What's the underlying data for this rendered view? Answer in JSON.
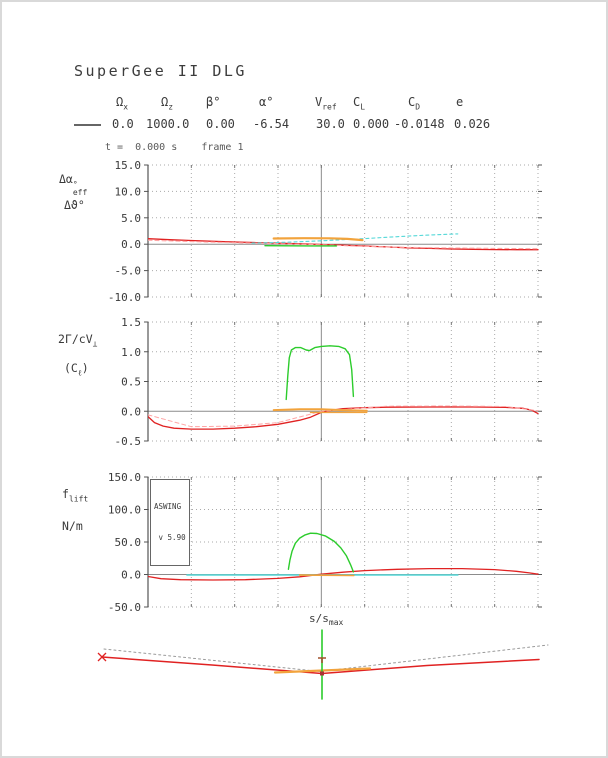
{
  "title": "SuperGee II DLG",
  "time_label": "t =  0.000 s    frame 1",
  "header": {
    "legend_swatch_color": "#666666",
    "columns": [
      {
        "symbol": "Ω",
        "sub": "x",
        "value": "0.0"
      },
      {
        "symbol": "Ω",
        "sub": "z",
        "value": "1000.0"
      },
      {
        "symbol": "β°",
        "sub": "",
        "value": "0.00"
      },
      {
        "symbol": "α°",
        "sub": "",
        "value": "-6.54"
      },
      {
        "symbol": "V",
        "sub": "ref",
        "value": "30.0"
      },
      {
        "symbol": "C",
        "sub": "L",
        "value": "0.000"
      },
      {
        "symbol": "C",
        "sub": "D",
        "value": "-0.0148"
      },
      {
        "symbol": "e",
        "sub": "",
        "value": "0.026"
      }
    ]
  },
  "version_box": {
    "line1": "ASWING",
    "line2": " v 5.90"
  },
  "xaxis_label": {
    "base": "s/s",
    "sub": "max"
  },
  "ylabels": {
    "plot1": {
      "l1base": "Δα",
      "l1sup": "°",
      "l1sub": "eff",
      "l2": "Δϑ°"
    },
    "plot2": {
      "l1base": "2Γ/cV",
      "l1sub": "⊥",
      "l2base": "(C",
      "l2sub": "ℓ",
      "l2end": ")"
    },
    "plot3": {
      "l1base": "f",
      "l1sub": "lift",
      "l2": "N/m"
    }
  },
  "colors": {
    "red": "#e02222",
    "pink": "#ffa6a6",
    "green": "#2ccc2c",
    "orange": "#f2a33c",
    "cyan": "#55d8d8",
    "grid": "#aaaaaa",
    "zero": "#8c8c8c",
    "axis": "#555555",
    "text": "#3a3a3a",
    "dotted_ref": "#9a9a9a",
    "marker_brown": "#a0522d"
  },
  "chart_data": [
    {
      "id": "plot1",
      "type": "line",
      "ylabel": "Δα°eff , Δϑ° (deg)",
      "xlabel": "s/s_max",
      "xlim": [
        -0.8,
        1.0
      ],
      "xtick_step": 0.2,
      "ylim": [
        -10,
        15
      ],
      "yticks": [
        [
          15,
          "15.0"
        ],
        [
          10,
          "10.0"
        ],
        [
          5,
          "5.0"
        ],
        [
          0,
          "0.0"
        ],
        [
          -5,
          "-5.0"
        ],
        [
          -10,
          "-10.0"
        ]
      ],
      "series": [
        {
          "name": "wing-delta-alpha",
          "color": "#e02222",
          "width": 1.3,
          "dash": null,
          "points": [
            [
              -0.8,
              1.05
            ],
            [
              -0.7,
              0.85
            ],
            [
              -0.6,
              0.7
            ],
            [
              -0.5,
              0.55
            ],
            [
              -0.4,
              0.42
            ],
            [
              -0.3,
              0.3
            ],
            [
              -0.2,
              0.18
            ],
            [
              -0.1,
              0.08
            ],
            [
              0,
              -0.05
            ],
            [
              0.1,
              -0.18
            ],
            [
              0.2,
              -0.35
            ],
            [
              0.3,
              -0.52
            ],
            [
              0.4,
              -0.68
            ],
            [
              0.5,
              -0.8
            ],
            [
              0.6,
              -0.9
            ],
            [
              0.7,
              -0.97
            ],
            [
              0.8,
              -1.02
            ],
            [
              0.9,
              -1.05
            ],
            [
              1.0,
              -1.05
            ]
          ]
        },
        {
          "name": "wing-delta-theta",
          "color": "#ffa6a6",
          "width": 1.1,
          "dash": "4 3",
          "points": [
            [
              -0.8,
              0.75
            ],
            [
              -0.6,
              0.5
            ],
            [
              -0.4,
              0.28
            ],
            [
              -0.2,
              0.1
            ],
            [
              0,
              -0.12
            ],
            [
              0.2,
              -0.42
            ],
            [
              0.4,
              -0.6
            ],
            [
              0.6,
              -0.72
            ],
            [
              0.8,
              -0.8
            ],
            [
              1.0,
              -0.85
            ]
          ]
        },
        {
          "name": "boom-cyan",
          "color": "#55d8d8",
          "width": 1.1,
          "dash": "3 3",
          "points": [
            [
              -0.32,
              0.2
            ],
            [
              -0.2,
              0.33
            ],
            [
              -0.1,
              0.47
            ],
            [
              0,
              0.65
            ],
            [
              0.1,
              0.85
            ],
            [
              0.2,
              1.07
            ],
            [
              0.3,
              1.3
            ],
            [
              0.4,
              1.53
            ],
            [
              0.5,
              1.74
            ],
            [
              0.58,
              1.88
            ],
            [
              0.63,
              1.95
            ]
          ]
        },
        {
          "name": "hstab-orange",
          "color": "#f2a33c",
          "width": 2.2,
          "dash": null,
          "points": [
            [
              -0.22,
              1.08
            ],
            [
              -0.08,
              1.14
            ],
            [
              0.04,
              1.12
            ],
            [
              0.12,
              1.0
            ],
            [
              0.19,
              0.78
            ]
          ]
        },
        {
          "name": "fin-green",
          "color": "#2ccc2c",
          "width": 1.4,
          "dash": null,
          "points": [
            [
              -0.26,
              -0.28
            ],
            [
              -0.05,
              -0.33
            ],
            [
              0.07,
              -0.33
            ]
          ]
        }
      ]
    },
    {
      "id": "plot2",
      "type": "line",
      "ylabel": "2Γ/cV⊥ (Cl)",
      "xlabel": "s/s_max",
      "xlim": [
        -0.8,
        1.0
      ],
      "xtick_step": 0.2,
      "ylim": [
        -0.5,
        1.5
      ],
      "yticks": [
        [
          1.5,
          "1.5"
        ],
        [
          1.0,
          "1.0"
        ],
        [
          0.5,
          "0.5"
        ],
        [
          0.0,
          "0.0"
        ],
        [
          -0.5,
          "-0.5"
        ]
      ],
      "series": [
        {
          "name": "wing-cl",
          "color": "#e02222",
          "width": 1.3,
          "dash": null,
          "points": [
            [
              -0.8,
              -0.09
            ],
            [
              -0.77,
              -0.19
            ],
            [
              -0.73,
              -0.25
            ],
            [
              -0.68,
              -0.285
            ],
            [
              -0.6,
              -0.3
            ],
            [
              -0.5,
              -0.3
            ],
            [
              -0.4,
              -0.285
            ],
            [
              -0.3,
              -0.26
            ],
            [
              -0.2,
              -0.22
            ],
            [
              -0.1,
              -0.15
            ],
            [
              -0.05,
              -0.1
            ],
            [
              0,
              -0.02
            ],
            [
              0.05,
              0.02
            ],
            [
              0.1,
              0.045
            ],
            [
              0.2,
              0.06
            ],
            [
              0.3,
              0.068
            ],
            [
              0.5,
              0.072
            ],
            [
              0.7,
              0.072
            ],
            [
              0.85,
              0.065
            ],
            [
              0.93,
              0.05
            ],
            [
              0.97,
              0.02
            ],
            [
              1.0,
              -0.04
            ]
          ]
        },
        {
          "name": "wing-cl-dashed",
          "color": "#ffa6a6",
          "width": 1.0,
          "dash": "4 3",
          "points": [
            [
              -0.8,
              -0.06
            ],
            [
              -0.6,
              -0.26
            ],
            [
              -0.4,
              -0.25
            ],
            [
              -0.2,
              -0.19
            ],
            [
              0,
              0.0
            ],
            [
              0.3,
              0.085
            ],
            [
              0.6,
              0.088
            ],
            [
              0.85,
              0.08
            ],
            [
              1.0,
              0.01
            ]
          ]
        },
        {
          "name": "fin-cl",
          "color": "#2ccc2c",
          "width": 1.4,
          "dash": null,
          "points": [
            [
              -0.162,
              0.2
            ],
            [
              -0.155,
              0.6
            ],
            [
              -0.148,
              0.9
            ],
            [
              -0.138,
              1.03
            ],
            [
              -0.12,
              1.07
            ],
            [
              -0.095,
              1.07
            ],
            [
              -0.07,
              1.03
            ],
            [
              -0.055,
              1.02
            ],
            [
              -0.03,
              1.07
            ],
            [
              0,
              1.09
            ],
            [
              0.04,
              1.1
            ],
            [
              0.08,
              1.09
            ],
            [
              0.11,
              1.05
            ],
            [
              0.13,
              0.95
            ],
            [
              0.14,
              0.7
            ],
            [
              0.148,
              0.25
            ]
          ]
        },
        {
          "name": "hstab-cl-upper",
          "color": "#f2a33c",
          "width": 2.0,
          "dash": null,
          "points": [
            [
              -0.22,
              0.02
            ],
            [
              -0.1,
              0.035
            ],
            [
              0,
              0.035
            ],
            [
              0.1,
              0.02
            ],
            [
              0.21,
              0.01
            ]
          ]
        },
        {
          "name": "hstab-cl-lower",
          "color": "#f2a33c",
          "width": 1.4,
          "dash": null,
          "points": [
            [
              -0.05,
              -0.02
            ],
            [
              0.21,
              -0.02
            ]
          ]
        }
      ]
    },
    {
      "id": "plot3",
      "type": "line",
      "ylabel": "f_lift (N/m)",
      "xlabel": "s/s_max",
      "xlim": [
        -0.8,
        1.0
      ],
      "xtick_step": 0.2,
      "ylim": [
        -50,
        150
      ],
      "yticks": [
        [
          150,
          "150.0"
        ],
        [
          100,
          "100.0"
        ],
        [
          50,
          "50.0"
        ],
        [
          0,
          "0.0"
        ],
        [
          -50,
          "-50.0"
        ]
      ],
      "series": [
        {
          "name": "wing-lift",
          "color": "#e02222",
          "width": 1.3,
          "dash": null,
          "points": [
            [
              -0.8,
              -3
            ],
            [
              -0.74,
              -6.5
            ],
            [
              -0.65,
              -8
            ],
            [
              -0.5,
              -8.5
            ],
            [
              -0.35,
              -8
            ],
            [
              -0.2,
              -6
            ],
            [
              -0.1,
              -3.5
            ],
            [
              0,
              0.5
            ],
            [
              0.1,
              3.5
            ],
            [
              0.2,
              6
            ],
            [
              0.35,
              8
            ],
            [
              0.5,
              9
            ],
            [
              0.65,
              9
            ],
            [
              0.8,
              7.5
            ],
            [
              0.9,
              5
            ],
            [
              0.96,
              2.5
            ],
            [
              1.0,
              0.5
            ]
          ]
        },
        {
          "name": "boom-lift",
          "color": "#55d8d8",
          "width": 1.6,
          "dash": null,
          "points": [
            [
              -0.62,
              -0.8
            ],
            [
              0.63,
              -0.8
            ]
          ]
        },
        {
          "name": "fin-lift",
          "color": "#2ccc2c",
          "width": 1.4,
          "dash": null,
          "points": [
            [
              -0.152,
              8
            ],
            [
              -0.145,
              22
            ],
            [
              -0.135,
              36
            ],
            [
              -0.12,
              48
            ],
            [
              -0.1,
              56
            ],
            [
              -0.075,
              61
            ],
            [
              -0.05,
              63.5
            ],
            [
              -0.02,
              63
            ],
            [
              0.02,
              59
            ],
            [
              0.06,
              51
            ],
            [
              0.09,
              41
            ],
            [
              0.115,
              29
            ],
            [
              0.135,
              15
            ],
            [
              0.148,
              4
            ]
          ]
        },
        {
          "name": "hstab-lift",
          "color": "#f2a33c",
          "width": 1.6,
          "dash": null,
          "points": [
            [
              -0.1,
              -1
            ],
            [
              0.15,
              -1.5
            ]
          ]
        }
      ]
    },
    {
      "id": "front_view",
      "type": "front-view",
      "units": "px",
      "series": [
        {
          "name": "wing-undeformed-left",
          "color": "#9a9a9a",
          "width": 1.0,
          "dash": "2 3",
          "points": [
            [
              102,
              647
            ],
            [
              318,
              669.5
            ]
          ]
        },
        {
          "name": "wing-undeformed-right",
          "color": "#9a9a9a",
          "width": 1.0,
          "dash": "2 3",
          "points": [
            [
              322,
              669
            ],
            [
              546,
              643
            ]
          ]
        },
        {
          "name": "wing-deformed",
          "color": "#e02222",
          "width": 1.5,
          "dash": null,
          "points": [
            [
              100,
              655
            ],
            [
              210,
              663
            ],
            [
              320,
              671.5
            ],
            [
              425,
              663.5
            ],
            [
              537,
              657.5
            ]
          ]
        },
        {
          "name": "hstab",
          "color": "#f2a33c",
          "width": 2.2,
          "dash": null,
          "points": [
            [
              273,
              670.5
            ],
            [
              368,
              666.5
            ]
          ]
        },
        {
          "name": "fin",
          "color": "#2ccc2c",
          "width": 1.6,
          "dash": null,
          "points": [
            [
              320,
              628
            ],
            [
              320,
              697
            ]
          ]
        }
      ],
      "markers": [
        {
          "name": "left-tip-x-marker",
          "shape": "x",
          "color": "#e02222",
          "x": 100,
          "y": 655,
          "size": 4
        },
        {
          "name": "root-tee-marker",
          "shape": "tee",
          "color": "#a0522d",
          "x": 320,
          "y": 656,
          "size": 4
        },
        {
          "name": "center-node-marker",
          "shape": "square",
          "color": "#aa3333",
          "x": 320,
          "y": 671.5,
          "size": 2
        }
      ]
    }
  ]
}
